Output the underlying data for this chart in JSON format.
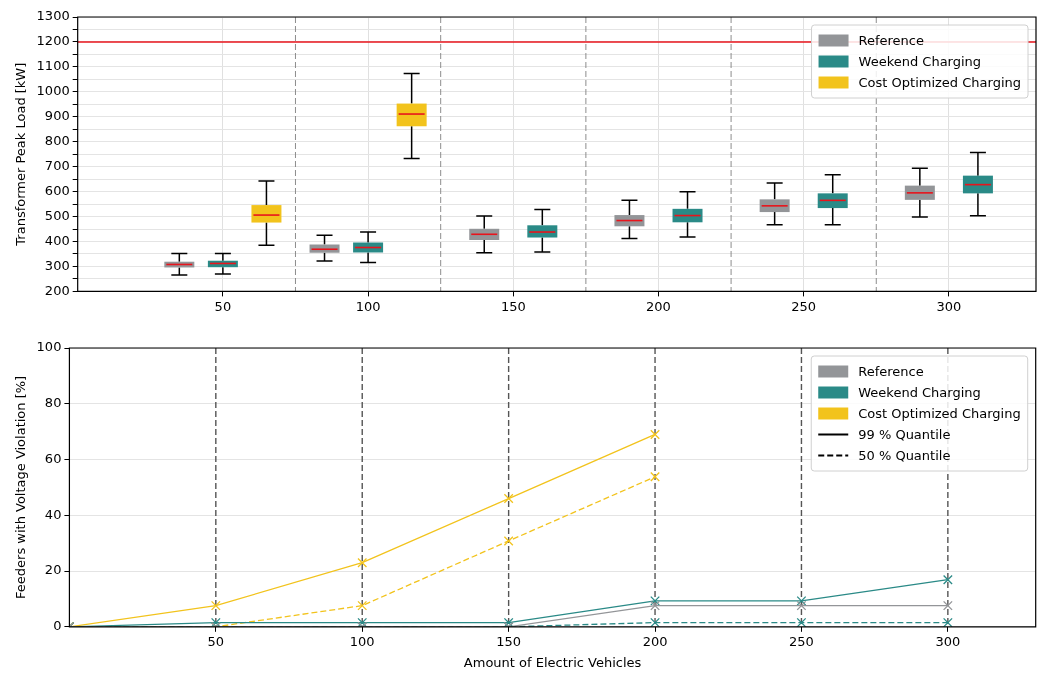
{
  "chart_data": [
    {
      "type": "box",
      "ylabel": "Transformer Peak Load [kW]",
      "xlim": [
        0,
        330
      ],
      "xticks": [
        50,
        100,
        150,
        200,
        250,
        300
      ],
      "ylim": [
        200,
        1300
      ],
      "yticks": [
        200,
        {
          "value": 250,
          "label": null
        },
        300,
        {
          "value": 350,
          "label": null
        },
        400,
        {
          "value": 450,
          "label": null
        },
        500,
        {
          "value": 550,
          "label": null
        },
        600,
        {
          "value": 650,
          "label": null
        },
        700,
        {
          "value": 750,
          "label": null
        },
        800,
        {
          "value": 850,
          "label": null
        },
        900,
        {
          "value": 950,
          "label": null
        },
        1000,
        {
          "value": 1050,
          "label": null
        },
        1100,
        {
          "value": 1150,
          "label": null
        },
        1200,
        {
          "value": 1250,
          "label": null
        },
        1300
      ],
      "grid": true,
      "legend": "top right",
      "ref_lines": [
        {
          "axis": "y",
          "value": 1200,
          "color": "#e8141c",
          "line_style": "solid"
        },
        {
          "axis": "x",
          "value": 75,
          "color": "#808080",
          "line_style": "dashed"
        },
        {
          "axis": "x",
          "value": 125,
          "color": "#808080",
          "line_style": "dashed"
        },
        {
          "axis": "x",
          "value": 175,
          "color": "#808080",
          "line_style": "dashed"
        },
        {
          "axis": "x",
          "value": 225,
          "color": "#808080",
          "line_style": "dashed"
        },
        {
          "axis": "x",
          "value": 275,
          "color": "#808080",
          "line_style": "dashed"
        }
      ],
      "series": [
        {
          "name": "Reference",
          "color": "#939598",
          "x": [
            35,
            85,
            140,
            190,
            240,
            290
          ],
          "boxes": [
            {
              "low": 266,
              "q1": 296,
              "median": 308,
              "q3": 319,
              "high": 352
            },
            {
              "low": 322,
              "q1": 355,
              "median": 369,
              "q3": 388,
              "high": 425
            },
            {
              "low": 355,
              "q1": 406,
              "median": 429,
              "q3": 451,
              "high": 502
            },
            {
              "low": 412,
              "q1": 461,
              "median": 484,
              "q3": 506,
              "high": 565
            },
            {
              "low": 467,
              "q1": 518,
              "median": 543,
              "q3": 569,
              "high": 635
            },
            {
              "low": 498,
              "q1": 567,
              "median": 595,
              "q3": 624,
              "high": 694
            }
          ]
        },
        {
          "name": "Weekend Charging",
          "color": "#2a8a87",
          "x": [
            50,
            100,
            160,
            210,
            260,
            310
          ],
          "boxes": [
            {
              "low": 270,
              "q1": 297,
              "median": 312,
              "q3": 323,
              "high": 352
            },
            {
              "low": 316,
              "q1": 356,
              "median": 376,
              "q3": 396,
              "high": 438
            },
            {
              "low": 358,
              "q1": 416,
              "median": 438,
              "q3": 465,
              "high": 528
            },
            {
              "low": 418,
              "q1": 477,
              "median": 504,
              "q3": 531,
              "high": 599
            },
            {
              "low": 467,
              "q1": 534,
              "median": 565,
              "q3": 593,
              "high": 668
            },
            {
              "low": 503,
              "q1": 593,
              "median": 628,
              "q3": 664,
              "high": 757
            }
          ]
        },
        {
          "name": "Cost Optimized Charging",
          "color": "#f2c31c",
          "x": [
            65,
            115
          ],
          "boxes": [
            {
              "low": 385,
              "q1": 476,
              "median": 506,
              "q3": 546,
              "high": 643
            },
            {
              "low": 733,
              "q1": 862,
              "median": 911,
              "q3": 953,
              "high": 1074
            }
          ]
        }
      ]
    },
    {
      "type": "line",
      "xlabel": "Amount of Electric Vehicles",
      "ylabel": "Feeders with Voltage Violation [%]",
      "x": [
        0,
        50,
        100,
        150,
        200,
        250,
        300
      ],
      "xlim": [
        0,
        330
      ],
      "xticks": [
        50,
        100,
        150,
        200,
        250,
        300
      ],
      "ylim": [
        0,
        100
      ],
      "yticks": [
        0,
        20,
        40,
        60,
        80,
        100
      ],
      "grid": "y",
      "legend": "top right",
      "marker": "cross",
      "ref_lines": [
        {
          "axis": "x",
          "value": 50,
          "color": "#555555",
          "line_style": "dashed"
        },
        {
          "axis": "x",
          "value": 100,
          "color": "#555555",
          "line_style": "dashed"
        },
        {
          "axis": "x",
          "value": 150,
          "color": "#555555",
          "line_style": "dashed"
        },
        {
          "axis": "x",
          "value": 200,
          "color": "#555555",
          "line_style": "dashed"
        },
        {
          "axis": "x",
          "value": 250,
          "color": "#555555",
          "line_style": "dashed"
        },
        {
          "axis": "x",
          "value": 300,
          "color": "#555555",
          "line_style": "dashed"
        }
      ],
      "series": [
        {
          "name": "Reference",
          "color": "#939598",
          "values": [
            0,
            0,
            0,
            0,
            7.6,
            7.6,
            7.6
          ]
        },
        {
          "name": "Weekend Charging",
          "color": "#2a8a87",
          "values": [
            0,
            1.5,
            1.5,
            1.5,
            9.3,
            9.3,
            16.9
          ]
        },
        {
          "name": "Cost Optimized Charging",
          "color": "#f2c31c",
          "values": [
            0,
            7.6,
            23,
            46,
            69,
            null,
            null
          ]
        },
        {
          "color": "#2a8a87",
          "line_style": "dashed",
          "values": [
            0,
            0,
            0,
            0,
            1.5,
            1.5,
            1.5
          ]
        },
        {
          "color": "#f2c31c",
          "line_style": "dashed",
          "values": [
            0,
            0,
            7.6,
            30.8,
            53.8,
            null,
            null
          ]
        },
        {
          "name": "99 % Quantile",
          "color": "#000000",
          "line_style": "solid",
          "values": [
            null,
            null,
            null,
            null,
            null,
            null,
            null
          ]
        },
        {
          "name": "50 % Quantile",
          "color": "#000000",
          "line_style": "dashed",
          "values": [
            null,
            null,
            null,
            null,
            null,
            null,
            null
          ]
        }
      ]
    }
  ]
}
